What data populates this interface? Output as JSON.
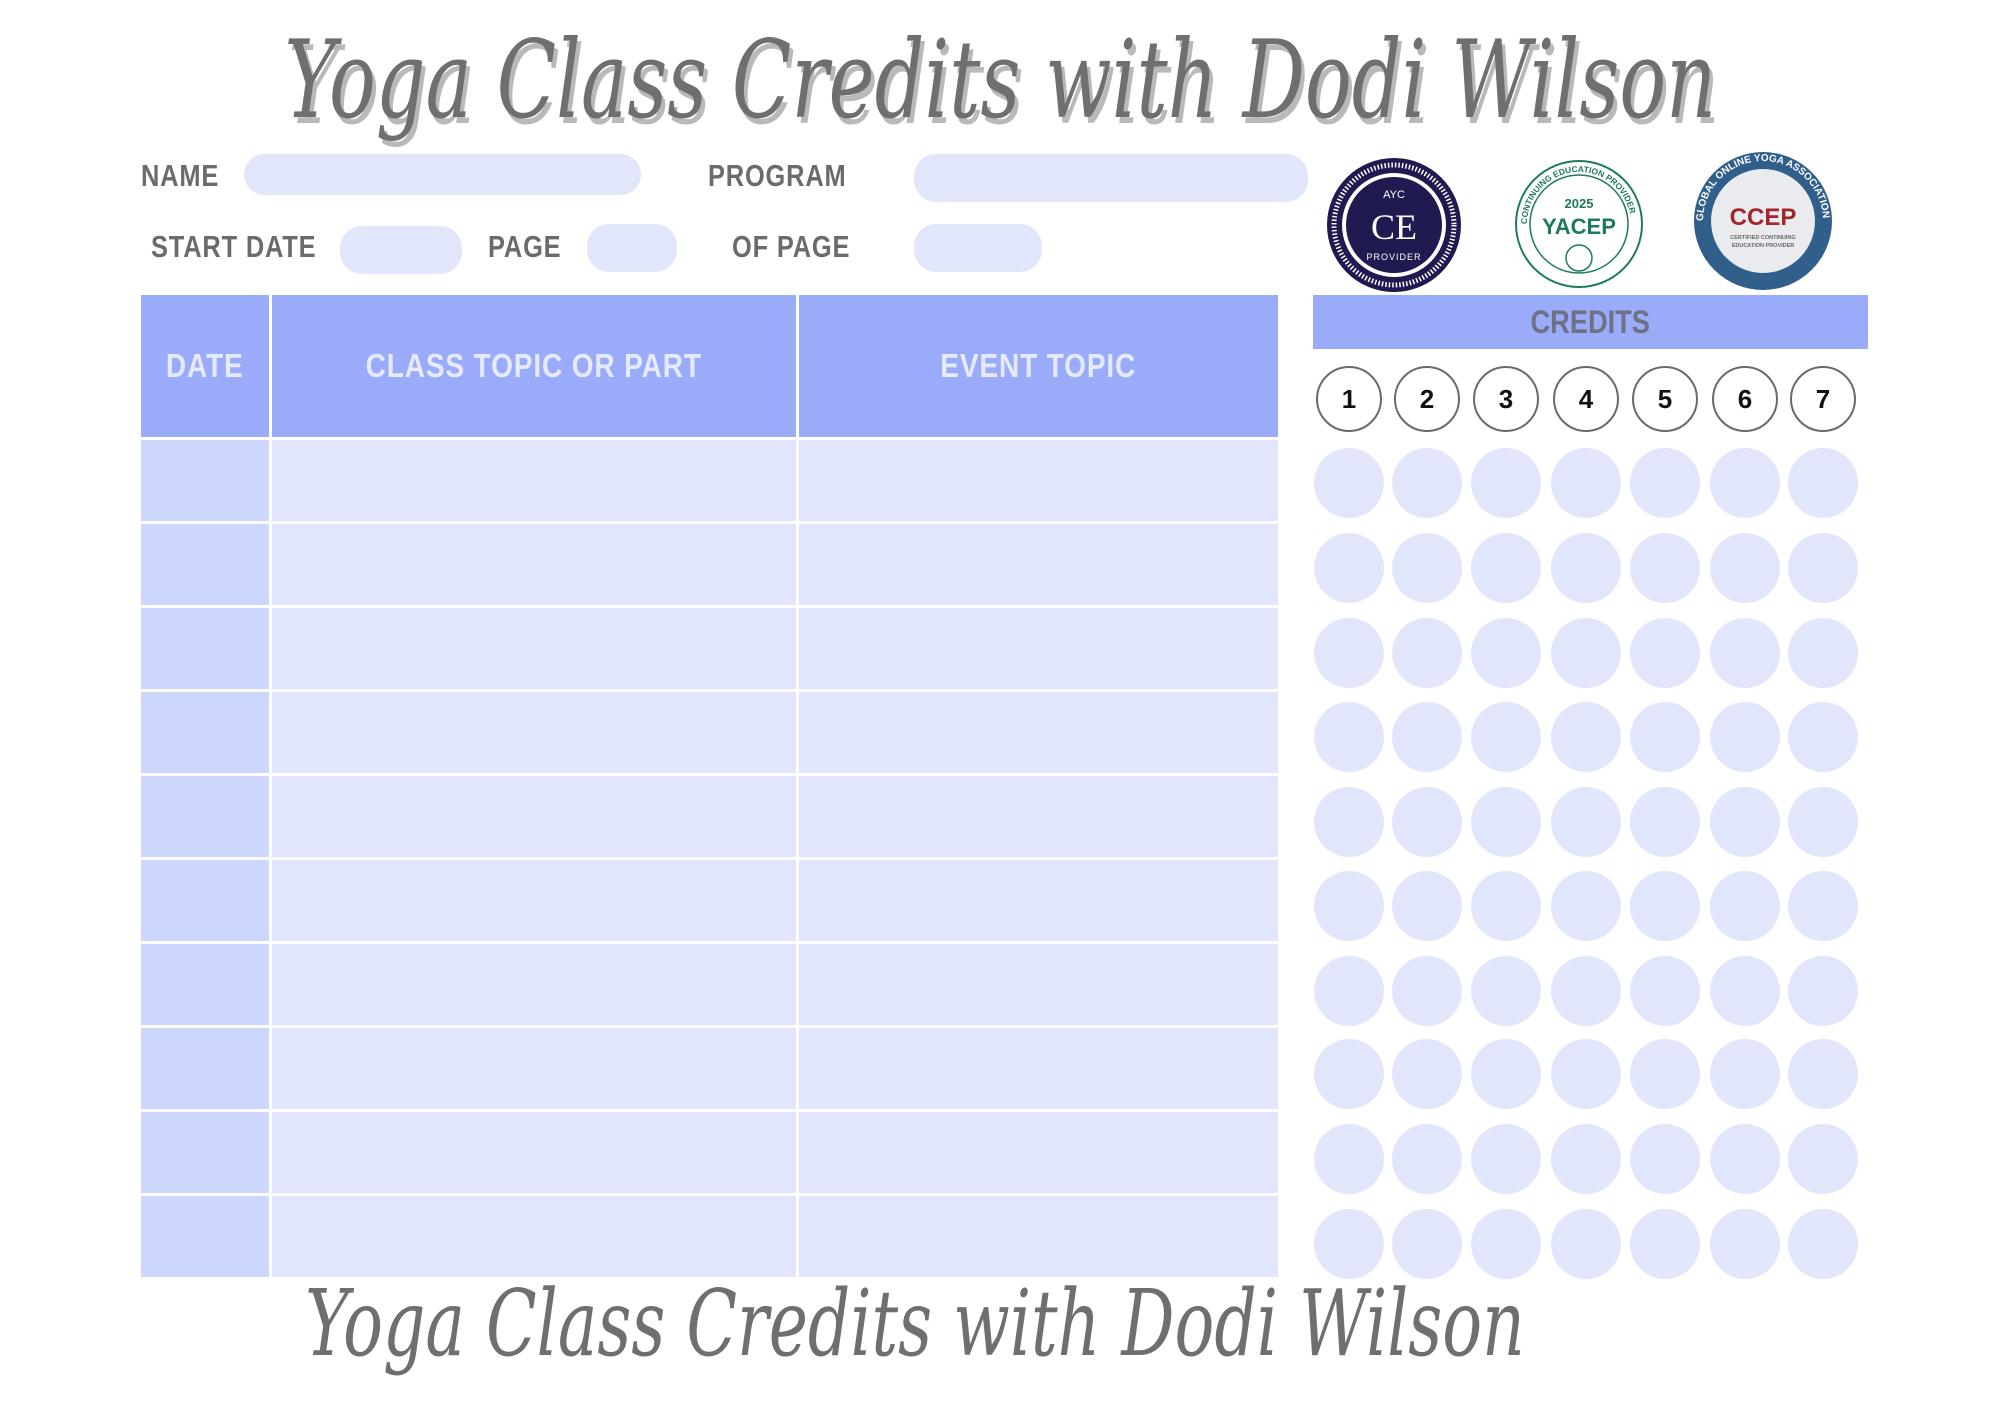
{
  "title": "Yoga Class Credits with Dodi Wilson",
  "footer_title": "Yoga Class Credits with Dodi Wilson",
  "form": {
    "name_label": "NAME",
    "name_value": "",
    "program_label": "PROGRAM",
    "program_value": "",
    "start_date_label": "START DATE",
    "start_date_value": "",
    "page_label": "PAGE",
    "page_value": "",
    "of_page_label": "OF PAGE",
    "of_page_value": ""
  },
  "badges": {
    "ayc": {
      "top": "AYC",
      "center": "CE",
      "bottom": "PROVIDER",
      "color": "#1f1a4f"
    },
    "yacep": {
      "ring": "CONTINUING EDUCATION PROVIDER",
      "year": "2025",
      "center": "YACEP",
      "color": "#1e7a5e"
    },
    "ccep": {
      "ring": "GLOBAL ONLINE YOGA ASSOCIATION",
      "center": "CCEP",
      "sub1": "CERTIFIED CONTINUING",
      "sub2": "EDUCATION PROVIDER",
      "color": "#2f5f8a",
      "accent": "#a3262f"
    }
  },
  "table": {
    "headers": [
      "DATE",
      "CLASS TOPIC OR PART",
      "EVENT TOPIC"
    ],
    "rows": [
      [
        "",
        "",
        ""
      ],
      [
        "",
        "",
        ""
      ],
      [
        "",
        "",
        ""
      ],
      [
        "",
        "",
        ""
      ],
      [
        "",
        "",
        ""
      ],
      [
        "",
        "",
        ""
      ],
      [
        "",
        "",
        ""
      ],
      [
        "",
        "",
        ""
      ],
      [
        "",
        "",
        ""
      ],
      [
        "",
        "",
        ""
      ]
    ]
  },
  "credits": {
    "header": "CREDITS",
    "numbers": [
      "1",
      "2",
      "3",
      "4",
      "5",
      "6",
      "7"
    ],
    "grid": [
      [
        false,
        false,
        false,
        false,
        false,
        false,
        false
      ],
      [
        false,
        false,
        false,
        false,
        false,
        false,
        false
      ],
      [
        false,
        false,
        false,
        false,
        false,
        false,
        false
      ],
      [
        false,
        false,
        false,
        false,
        false,
        false,
        false
      ],
      [
        false,
        false,
        false,
        false,
        false,
        false,
        false
      ],
      [
        false,
        false,
        false,
        false,
        false,
        false,
        false
      ],
      [
        false,
        false,
        false,
        false,
        false,
        false,
        false
      ],
      [
        false,
        false,
        false,
        false,
        false,
        false,
        false
      ],
      [
        false,
        false,
        false,
        false,
        false,
        false,
        false
      ],
      [
        false,
        false,
        false,
        false,
        false,
        false,
        false
      ]
    ]
  },
  "colors": {
    "header": "#9aabfa",
    "cell": "#e1e6fc",
    "date_cell": "#cdd6fc",
    "text": "#6b6b6b"
  }
}
